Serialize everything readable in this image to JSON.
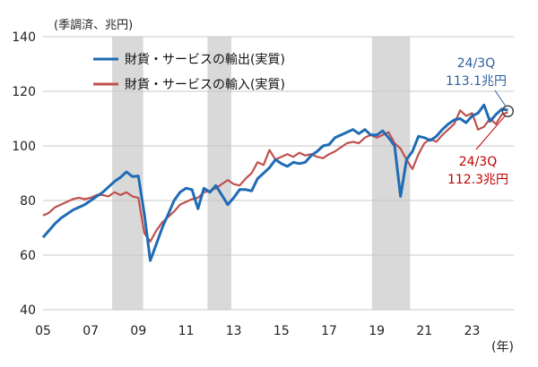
{
  "chart_data": {
    "type": "line",
    "unit_label": "(季調済、兆円)",
    "x_unit_label": "(年)",
    "ylim": [
      40,
      140
    ],
    "yticks": [
      40,
      60,
      80,
      100,
      120,
      140
    ],
    "xlim": [
      2005.0,
      2024.75
    ],
    "xticks": [
      {
        "x": 2005,
        "label": "05"
      },
      {
        "x": 2007,
        "label": "07"
      },
      {
        "x": 2009,
        "label": "09"
      },
      {
        "x": 2011,
        "label": "11"
      },
      {
        "x": 2013,
        "label": "13"
      },
      {
        "x": 2015,
        "label": "15"
      },
      {
        "x": 2017,
        "label": "17"
      },
      {
        "x": 2019,
        "label": "19"
      },
      {
        "x": 2021,
        "label": "21"
      },
      {
        "x": 2023,
        "label": "23"
      }
    ],
    "grid": true,
    "legend_position": "top-left",
    "recession_shading": [
      [
        2007.9,
        2009.2
      ],
      [
        2011.9,
        2012.9
      ],
      [
        2018.8,
        2020.4
      ]
    ],
    "series": [
      {
        "name": "財貨・サービスの輸出(実質)",
        "color": "#1f6bb5",
        "x": [
          2005.0,
          2005.25,
          2005.5,
          2005.75,
          2006.0,
          2006.25,
          2006.5,
          2006.75,
          2007.0,
          2007.25,
          2007.5,
          2007.75,
          2008.0,
          2008.25,
          2008.5,
          2008.75,
          2009.0,
          2009.25,
          2009.5,
          2009.75,
          2010.0,
          2010.25,
          2010.5,
          2010.75,
          2011.0,
          2011.25,
          2011.5,
          2011.75,
          2012.0,
          2012.25,
          2012.5,
          2012.75,
          2013.0,
          2013.25,
          2013.5,
          2013.75,
          2014.0,
          2014.25,
          2014.5,
          2014.75,
          2015.0,
          2015.25,
          2015.5,
          2015.75,
          2016.0,
          2016.25,
          2016.5,
          2016.75,
          2017.0,
          2017.25,
          2017.5,
          2017.75,
          2018.0,
          2018.25,
          2018.5,
          2018.75,
          2019.0,
          2019.25,
          2019.5,
          2019.75,
          2020.0,
          2020.25,
          2020.5,
          2020.75,
          2021.0,
          2021.25,
          2021.5,
          2021.75,
          2022.0,
          2022.25,
          2022.5,
          2022.75,
          2023.0,
          2023.25,
          2023.5,
          2023.75,
          2024.0,
          2024.25,
          2024.5
        ],
        "values": [
          66.5,
          69,
          71.5,
          73.5,
          75,
          76.5,
          77.5,
          78.5,
          80,
          81.5,
          83,
          85,
          87,
          88.5,
          90.5,
          88.8,
          89,
          75,
          58,
          64,
          70,
          75,
          80,
          83,
          84.5,
          84,
          77,
          84.5,
          83,
          85.5,
          82,
          78.5,
          81,
          84,
          84,
          83.5,
          88,
          90,
          92,
          95,
          93.5,
          92.5,
          94,
          93.5,
          94,
          96.5,
          98,
          100,
          100.5,
          103,
          104,
          105,
          106,
          104.5,
          106,
          104,
          104,
          105.5,
          103,
          100,
          81.5,
          95,
          98,
          103.5,
          103,
          102,
          103.5,
          106,
          108,
          109.5,
          110,
          108.5,
          111,
          112,
          115,
          109,
          111.5,
          113.5,
          113.1
        ]
      },
      {
        "name": "財貨・サービスの輸入(実質)",
        "color": "#c0504d",
        "x": [
          2005.0,
          2005.25,
          2005.5,
          2005.75,
          2006.0,
          2006.25,
          2006.5,
          2006.75,
          2007.0,
          2007.25,
          2007.5,
          2007.75,
          2008.0,
          2008.25,
          2008.5,
          2008.75,
          2009.0,
          2009.25,
          2009.5,
          2009.75,
          2010.0,
          2010.25,
          2010.5,
          2010.75,
          2011.0,
          2011.25,
          2011.5,
          2011.75,
          2012.0,
          2012.25,
          2012.5,
          2012.75,
          2013.0,
          2013.25,
          2013.5,
          2013.75,
          2014.0,
          2014.25,
          2014.5,
          2014.75,
          2015.0,
          2015.25,
          2015.5,
          2015.75,
          2016.0,
          2016.25,
          2016.5,
          2016.75,
          2017.0,
          2017.25,
          2017.5,
          2017.75,
          2018.0,
          2018.25,
          2018.5,
          2018.75,
          2019.0,
          2019.25,
          2019.5,
          2019.75,
          2020.0,
          2020.25,
          2020.5,
          2020.75,
          2021.0,
          2021.25,
          2021.5,
          2021.75,
          2022.0,
          2022.25,
          2022.5,
          2022.75,
          2023.0,
          2023.25,
          2023.5,
          2023.75,
          2024.0,
          2024.25,
          2024.5
        ],
        "values": [
          74.5,
          75.5,
          77.5,
          78.5,
          79.5,
          80.5,
          81,
          80.5,
          81,
          82,
          82,
          81.5,
          83,
          82,
          83,
          81.5,
          81,
          68,
          65,
          69,
          72,
          74,
          76,
          78.5,
          79.5,
          80.5,
          81,
          83,
          83.5,
          84.5,
          86,
          87.5,
          86,
          85.5,
          88,
          90,
          94,
          93,
          98.5,
          95,
          96,
          97,
          96,
          97.5,
          96.5,
          97,
          96,
          95.5,
          97,
          98,
          99.5,
          101,
          101.5,
          101,
          103,
          104,
          103,
          104,
          105,
          101,
          99,
          95,
          91.5,
          97,
          101,
          102.5,
          101.5,
          104,
          106,
          108,
          113,
          111,
          112,
          106,
          107,
          110,
          108,
          111.5,
          112.3
        ]
      }
    ],
    "annotations": [
      {
        "series": 0,
        "lines": [
          "24/3Q",
          "113.1兆円"
        ],
        "color": "#2e5f9e"
      },
      {
        "series": 1,
        "lines": [
          "24/3Q",
          "112.3兆円"
        ],
        "color": "#c00000"
      }
    ]
  }
}
